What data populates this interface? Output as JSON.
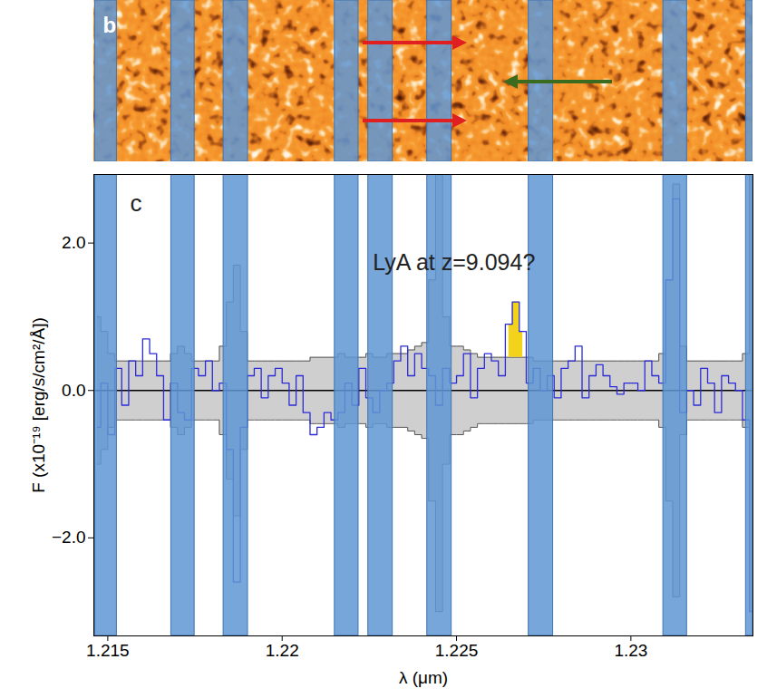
{
  "chart_data": {
    "type": "line",
    "panel_label": "c",
    "x_label": "λ (μm)",
    "y_label": "F (x10⁻¹⁹ [erg/s/cm²/Å])",
    "color": "#2b2bd9",
    "x": [
      1.2147,
      1.2149,
      1.2151,
      1.2153,
      1.2155,
      1.2157,
      1.2159,
      1.2161,
      1.2163,
      1.2165,
      1.2167,
      1.2169,
      1.2171,
      1.2173,
      1.2175,
      1.2177,
      1.2179,
      1.2181,
      1.2183,
      1.2185,
      1.2187,
      1.2189,
      1.2191,
      1.2193,
      1.2195,
      1.2197,
      1.2199,
      1.2201,
      1.2203,
      1.2205,
      1.2207,
      1.2209,
      1.2211,
      1.2213,
      1.2215,
      1.2217,
      1.2219,
      1.2221,
      1.2223,
      1.2225,
      1.2227,
      1.2229,
      1.2231,
      1.2233,
      1.2235,
      1.2237,
      1.2239,
      1.2241,
      1.2243,
      1.2245,
      1.2247,
      1.2249,
      1.2251,
      1.2253,
      1.2255,
      1.2257,
      1.2259,
      1.2261,
      1.2263,
      1.2265,
      1.2267,
      1.2269,
      1.2271,
      1.2273,
      1.2275,
      1.2277,
      1.2279,
      1.2281,
      1.2283,
      1.2285,
      1.2287,
      1.2289,
      1.2291,
      1.2293,
      1.2295,
      1.2297,
      1.2299,
      1.2301,
      1.2303,
      1.2305,
      1.2307,
      1.2309,
      1.2311,
      1.2313,
      1.2315,
      1.2317,
      1.2319,
      1.2321,
      1.2323,
      1.2325,
      1.2327,
      1.2329,
      1.2331,
      1.2333,
      1.2335
    ],
    "values": [
      -0.5,
      0.1,
      -0.6,
      0.3,
      -0.2,
      0.4,
      0.2,
      0.7,
      0.5,
      0.2,
      -0.4,
      0.1,
      -0.3,
      -0.4,
      0.3,
      0.2,
      0.4,
      0.0,
      0.1,
      -0.8,
      -2.6,
      -0.5,
      0.2,
      0.3,
      -0.1,
      0.2,
      0.3,
      0.1,
      -0.2,
      0.2,
      -0.3,
      -0.6,
      -0.5,
      -0.3,
      -0.4,
      -0.3,
      0.1,
      -0.2,
      0.3,
      -0.1,
      -0.3,
      0.0,
      0.1,
      0.4,
      0.6,
      0.2,
      0.5,
      0.3,
      0.2,
      -0.2,
      0.3,
      0.1,
      0.2,
      0.5,
      -0.1,
      0.3,
      0.5,
      0.4,
      0.2,
      0.9,
      1.2,
      0.8,
      0.1,
      0.3,
      0.0,
      0.2,
      -0.1,
      0.3,
      0.4,
      0.6,
      -0.1,
      0.2,
      0.35,
      0.2,
      0.05,
      -0.05,
      0.1,
      0.1,
      0.0,
      0.4,
      0.2,
      0.1,
      1.5,
      2.6,
      -0.3,
      0.0,
      -0.2,
      0.3,
      0.1,
      -0.3,
      0.2,
      0.1,
      0.0,
      -0.4,
      -3.0
    ],
    "error": [
      1.0,
      0.8,
      0.5,
      0.4,
      0.4,
      0.4,
      0.4,
      0.4,
      0.4,
      0.4,
      0.4,
      0.5,
      0.6,
      0.5,
      0.4,
      0.4,
      0.4,
      0.4,
      0.6,
      1.2,
      1.7,
      0.8,
      0.4,
      0.4,
      0.4,
      0.4,
      0.4,
      0.4,
      0.4,
      0.4,
      0.4,
      0.45,
      0.45,
      0.45,
      0.45,
      0.5,
      0.45,
      0.45,
      0.45,
      0.5,
      0.45,
      0.45,
      0.5,
      0.5,
      0.5,
      0.55,
      0.6,
      0.65,
      1.5,
      3.0,
      1.0,
      0.6,
      0.6,
      0.55,
      0.5,
      0.45,
      0.45,
      0.45,
      0.45,
      0.45,
      0.45,
      0.45,
      0.45,
      0.4,
      0.4,
      0.4,
      0.4,
      0.4,
      0.4,
      0.4,
      0.4,
      0.4,
      0.4,
      0.4,
      0.4,
      0.4,
      0.4,
      0.4,
      0.4,
      0.4,
      0.4,
      0.5,
      1.5,
      2.8,
      0.6,
      0.4,
      0.4,
      0.4,
      0.4,
      0.4,
      0.4,
      0.4,
      0.4,
      0.5,
      3.0
    ],
    "xlim": [
      1.2146,
      1.2335
    ],
    "xticks": [
      1.215,
      1.22,
      1.225,
      1.23
    ],
    "ylim": [
      -3.33,
      2.93
    ],
    "yticks": [
      -2,
      0,
      2
    ],
    "reference_line": 0,
    "masked_regions": [
      [
        1.21464,
        1.21526
      ],
      [
        1.21682,
        1.21749
      ],
      [
        1.21832,
        1.21902
      ],
      [
        1.22151,
        1.22219
      ],
      [
        1.22247,
        1.22317
      ],
      [
        1.22416,
        1.22486
      ],
      [
        1.22707,
        1.22777
      ],
      [
        1.23093,
        1.23161
      ],
      [
        1.2333,
        1.2335
      ]
    ],
    "highlight_range": [
      1.2264,
      1.227
    ],
    "annotation": {
      "text": "LyA at z=9.094?",
      "x": 1.2226,
      "y": 1.73
    }
  },
  "image_panel": {
    "panel_label": "b"
  }
}
